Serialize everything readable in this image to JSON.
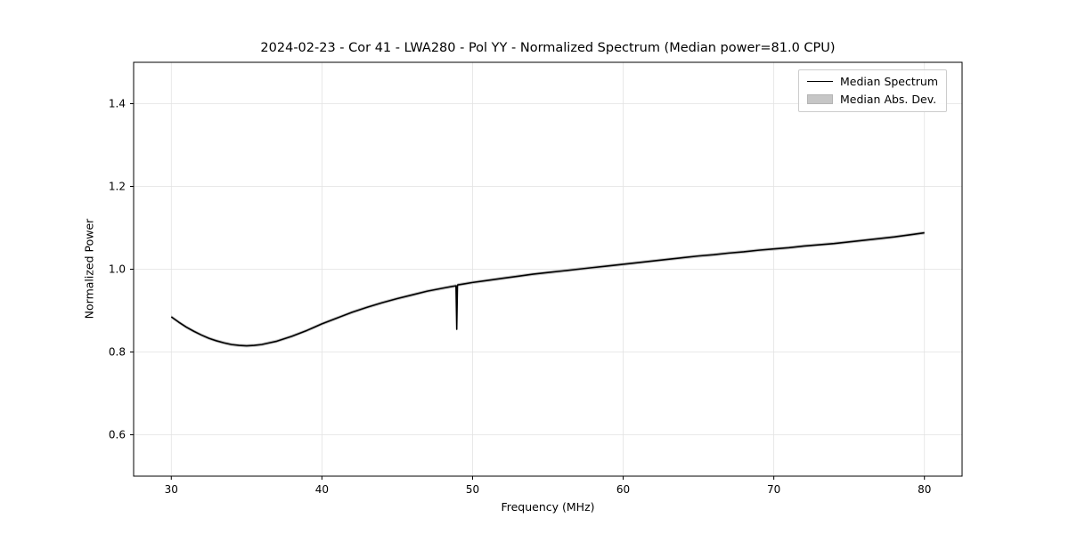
{
  "chart_data": {
    "type": "line",
    "title": "2024-02-23 - Cor 41 - LWA280 - Pol YY - Normalized Spectrum (Median power=81.0 CPU)",
    "xlabel": "Frequency (MHz)",
    "ylabel": "Normalized Power",
    "xlim": [
      27.5,
      82.5
    ],
    "ylim": [
      0.5,
      1.5
    ],
    "xticks": [
      30,
      40,
      50,
      60,
      70,
      80
    ],
    "xtick_labels": [
      "30",
      "40",
      "50",
      "60",
      "70",
      "80"
    ],
    "yticks": [
      0.6,
      0.8,
      1.0,
      1.2,
      1.4
    ],
    "ytick_labels": [
      "0.6",
      "0.8",
      "1.0",
      "1.2",
      "1.4"
    ],
    "grid": true,
    "grid_color": "#e2e2e2",
    "axis_color": "#000000",
    "legend_position": "upper right",
    "series": [
      {
        "name": "Median Spectrum",
        "color": "#000000",
        "x": [
          30,
          30.5,
          31,
          31.5,
          32,
          32.5,
          33,
          33.5,
          34,
          34.5,
          35,
          35.5,
          36,
          36.5,
          37,
          37.5,
          38,
          38.5,
          39,
          39.5,
          40,
          41,
          42,
          43,
          44,
          45,
          46,
          47,
          48,
          48.9,
          48.95,
          49.0,
          49.5,
          50,
          51,
          52,
          53,
          54,
          55,
          56,
          57,
          58,
          59,
          60,
          61,
          62,
          63,
          64,
          65,
          66,
          67,
          68,
          69,
          70,
          71,
          72,
          73,
          74,
          75,
          76,
          77,
          78,
          79,
          80
        ],
        "y": [
          0.885,
          0.872,
          0.86,
          0.85,
          0.841,
          0.833,
          0.827,
          0.822,
          0.818,
          0.816,
          0.815,
          0.816,
          0.818,
          0.822,
          0.826,
          0.832,
          0.838,
          0.845,
          0.852,
          0.86,
          0.868,
          0.882,
          0.896,
          0.908,
          0.919,
          0.929,
          0.938,
          0.947,
          0.954,
          0.96,
          0.855,
          0.962,
          0.965,
          0.968,
          0.973,
          0.978,
          0.983,
          0.988,
          0.992,
          0.996,
          1.0,
          1.004,
          1.008,
          1.012,
          1.016,
          1.02,
          1.024,
          1.028,
          1.032,
          1.035,
          1.039,
          1.042,
          1.046,
          1.049,
          1.052,
          1.056,
          1.059,
          1.062,
          1.066,
          1.07,
          1.074,
          1.078,
          1.083,
          1.088
        ]
      },
      {
        "name": "Median Abs. Dev.",
        "color": "#c6c6c6",
        "band_halfwidth": 0.004
      }
    ]
  }
}
